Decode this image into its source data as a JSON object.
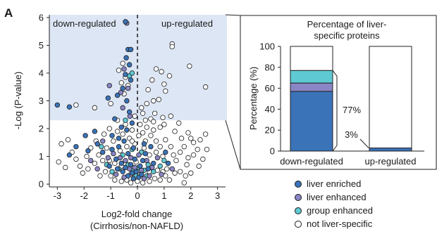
{
  "panel_label": "A",
  "colors": {
    "highlight_region": "#dde6f4",
    "liver_enriched": "#3a73b8",
    "liver_enhanced": "#8a85c4",
    "group_enhanced": "#5fc9d3",
    "not_liver_specific": "#ffffff"
  },
  "chart_data": [
    {
      "type": "scatter",
      "xlabel": "Log2-fold change",
      "xlabel2": "(Cirrhosis/non-NAFLD)",
      "ylabel": "-Log (P-value)",
      "xlim": [
        -3.3,
        3.3
      ],
      "ylim": [
        -0.1,
        6.1
      ],
      "xticks": [
        -3,
        -2,
        -1,
        0,
        1,
        2,
        3
      ],
      "yticks": [
        0,
        1,
        2,
        3,
        4,
        5,
        6
      ],
      "threshold_y": 2.3,
      "zero_line_x": 0,
      "annotations": {
        "left": "down-regulated",
        "right": "up-regulated"
      },
      "series": [
        {
          "name": "liver enriched",
          "color": "#3a73b8",
          "points": [
            [
              -3.0,
              2.85
            ],
            [
              -2.55,
              2.78
            ],
            [
              -0.45,
              5.85
            ],
            [
              -0.35,
              4.85
            ],
            [
              -0.25,
              4.85
            ],
            [
              -0.42,
              4.55
            ],
            [
              -0.3,
              4.3
            ],
            [
              -0.45,
              3.95
            ],
            [
              -0.25,
              3.75
            ],
            [
              -0.55,
              3.45
            ],
            [
              -0.75,
              3.2
            ],
            [
              -1.1,
              3.1
            ],
            [
              -0.85,
              2.35
            ],
            [
              -0.4,
              3.0
            ],
            [
              -0.3,
              2.6
            ],
            [
              -0.2,
              2.2
            ],
            [
              -0.6,
              2.05
            ],
            [
              -0.4,
              1.95
            ],
            [
              -1.6,
              1.9
            ],
            [
              -1.95,
              1.75
            ],
            [
              -1.5,
              1.45
            ],
            [
              -2.3,
              1.35
            ],
            [
              -1.85,
              1.2
            ],
            [
              -2.55,
              1.05
            ],
            [
              -1.3,
              1.15
            ],
            [
              -0.95,
              1.25
            ],
            [
              -0.7,
              1.35
            ],
            [
              -0.5,
              1.55
            ],
            [
              -0.35,
              1.1
            ],
            [
              -0.15,
              1.3
            ],
            [
              -0.8,
              0.9
            ],
            [
              -0.6,
              0.75
            ],
            [
              -0.45,
              0.6
            ],
            [
              -0.25,
              0.7
            ],
            [
              -0.1,
              0.9
            ],
            [
              -0.05,
              0.45
            ],
            [
              -0.2,
              0.4
            ],
            [
              -0.35,
              0.3
            ],
            [
              -0.55,
              0.45
            ],
            [
              -0.75,
              0.55
            ],
            [
              0.1,
              0.65
            ],
            [
              0.2,
              0.85
            ],
            [
              0.3,
              1.1
            ],
            [
              0.4,
              0.55
            ],
            [
              0.6,
              0.75
            ],
            [
              0.5,
              1.35
            ],
            [
              1.05,
              1.15
            ],
            [
              1.15,
              0.75
            ],
            [
              -1.05,
              0.65
            ],
            [
              -0.15,
              0.2
            ],
            [
              0.05,
              0.25
            ],
            [
              0.15,
              0.35
            ],
            [
              -0.95,
              1.75
            ],
            [
              -0.7,
              1.65
            ],
            [
              0.25,
              1.45
            ]
          ]
        },
        {
          "name": "liver enhanced",
          "color": "#8a85c4",
          "points": [
            [
              -0.4,
              5.8
            ],
            [
              -0.5,
              4.15
            ],
            [
              -0.62,
              3.3
            ],
            [
              -0.35,
              3.45
            ],
            [
              -1.05,
              3.55
            ],
            [
              -0.55,
              2.75
            ],
            [
              -0.28,
              2.45
            ],
            [
              -1.3,
              1.55
            ],
            [
              -1.1,
              0.95
            ],
            [
              -0.9,
              1.1
            ],
            [
              -0.65,
              0.95
            ],
            [
              -0.45,
              0.85
            ],
            [
              -0.3,
              0.55
            ],
            [
              -0.1,
              0.6
            ],
            [
              0.15,
              0.5
            ],
            [
              0.35,
              0.85
            ],
            [
              0.55,
              0.6
            ],
            [
              0.75,
              0.95
            ],
            [
              1.3,
              0.55
            ],
            [
              0.9,
              0.35
            ],
            [
              -0.8,
              0.35
            ],
            [
              -0.5,
              0.25
            ],
            [
              -0.25,
              0.95
            ],
            [
              0.05,
              1.05
            ],
            [
              0.25,
              0.2
            ],
            [
              -1.5,
              0.55
            ],
            [
              -1.75,
              0.85
            ],
            [
              0.45,
              0.3
            ]
          ]
        },
        {
          "name": "group enhanced",
          "color": "#5fc9d3",
          "points": [
            [
              -0.3,
              3.9
            ],
            [
              -0.2,
              4.0
            ],
            [
              -0.45,
              2.3
            ],
            [
              -1.35,
              1.35
            ],
            [
              -1.15,
              0.7
            ],
            [
              -0.7,
              0.55
            ],
            [
              -0.35,
              0.7
            ],
            [
              -0.15,
              0.5
            ],
            [
              0.05,
              0.6
            ],
            [
              0.25,
              0.5
            ],
            [
              0.4,
              0.7
            ],
            [
              0.6,
              0.45
            ],
            [
              0.85,
              0.65
            ],
            [
              1.0,
              0.85
            ],
            [
              -0.55,
              1.05
            ],
            [
              -0.2,
              1.25
            ],
            [
              0.15,
              1.15
            ],
            [
              -0.95,
              0.45
            ],
            [
              0.35,
              0.3
            ],
            [
              -0.05,
              0.3
            ]
          ]
        },
        {
          "name": "not liver-specific",
          "color": "#ffffff",
          "points": [
            [
              -2.3,
              2.85
            ],
            [
              -1.6,
              2.75
            ],
            [
              -1.0,
              2.9
            ],
            [
              -0.35,
              3.55
            ],
            [
              -0.5,
              3.25
            ],
            [
              0.35,
              2.9
            ],
            [
              0.2,
              2.55
            ],
            [
              0.5,
              2.35
            ],
            [
              0.35,
              2.05
            ],
            [
              0.6,
              2.25
            ],
            [
              0.85,
              2.05
            ],
            [
              1.0,
              2.15
            ],
            [
              1.25,
              2.45
            ],
            [
              1.4,
              1.9
            ],
            [
              1.65,
              1.65
            ],
            [
              1.9,
              1.85
            ],
            [
              2.1,
              1.5
            ],
            [
              2.35,
              1.6
            ],
            [
              2.55,
              1.8
            ],
            [
              2.6,
              1.25
            ],
            [
              2.45,
              0.9
            ],
            [
              2.1,
              1.05
            ],
            [
              1.85,
              0.7
            ],
            [
              1.6,
              1.15
            ],
            [
              1.45,
              0.85
            ],
            [
              1.25,
              1.35
            ],
            [
              1.05,
              1.6
            ],
            [
              0.85,
              1.35
            ],
            [
              0.7,
              1.55
            ],
            [
              0.5,
              1.75
            ],
            [
              0.3,
              1.55
            ],
            [
              0.2,
              1.85
            ],
            [
              0.1,
              2.15
            ],
            [
              0.4,
              3.4
            ],
            [
              0.8,
              3.05
            ],
            [
              1.05,
              3.35
            ],
            [
              1.2,
              3.9
            ],
            [
              0.9,
              4.05
            ],
            [
              0.7,
              4.15
            ],
            [
              0.55,
              3.75
            ],
            [
              1.3,
              5.05
            ],
            [
              1.3,
              4.95
            ],
            [
              1.95,
              4.25
            ],
            [
              2.55,
              3.5
            ],
            [
              1.0,
              3.6
            ],
            [
              0.6,
              3.0
            ],
            [
              -0.55,
              4.35
            ],
            [
              -0.7,
              4.1
            ],
            [
              -0.45,
              3.85
            ],
            [
              -0.6,
              3.65
            ],
            [
              -2.6,
              1.6
            ],
            [
              -2.85,
              1.45
            ],
            [
              -2.3,
              0.9
            ],
            [
              -2.15,
              0.65
            ],
            [
              -2.7,
              0.6
            ],
            [
              -2.95,
              0.8
            ],
            [
              -1.9,
              1.0
            ],
            [
              -1.75,
              1.3
            ],
            [
              -1.45,
              1.05
            ],
            [
              -1.6,
              0.75
            ],
            [
              -1.3,
              0.85
            ],
            [
              -1.2,
              0.45
            ],
            [
              -1.4,
              0.3
            ],
            [
              -1.0,
              0.3
            ],
            [
              -0.85,
              0.15
            ],
            [
              -0.6,
              0.1
            ],
            [
              -0.4,
              0.15
            ],
            [
              -0.25,
              0.05
            ],
            [
              0.0,
              0.1
            ],
            [
              0.2,
              0.05
            ],
            [
              0.45,
              0.1
            ],
            [
              0.65,
              0.2
            ],
            [
              0.85,
              0.15
            ],
            [
              1.05,
              0.3
            ],
            [
              1.2,
              0.15
            ],
            [
              1.4,
              0.4
            ],
            [
              1.6,
              0.45
            ],
            [
              1.8,
              0.3
            ],
            [
              2.0,
              0.4
            ],
            [
              1.75,
              0.05
            ],
            [
              1.1,
              0.55
            ],
            [
              0.95,
              1.0
            ],
            [
              0.7,
              1.15
            ],
            [
              0.45,
              1.05
            ],
            [
              0.25,
              1.3
            ],
            [
              -0.1,
              1.45
            ],
            [
              -0.3,
              1.65
            ],
            [
              -0.55,
              1.8
            ],
            [
              -0.75,
              1.9
            ],
            [
              -1.05,
              2.0
            ],
            [
              -1.25,
              1.8
            ],
            [
              -0.9,
              1.55
            ],
            [
              -1.15,
              1.3
            ],
            [
              -0.65,
              1.2
            ],
            [
              -0.4,
              1.35
            ],
            [
              -0.2,
              1.55
            ],
            [
              0.05,
              1.75
            ],
            [
              0.3,
              2.3
            ],
            [
              0.65,
              2.55
            ],
            [
              0.95,
              2.4
            ],
            [
              0.15,
              2.75
            ],
            [
              -0.1,
              2.45
            ],
            [
              -0.2,
              1.95
            ],
            [
              -0.45,
              2.15
            ],
            [
              -0.75,
              2.3
            ],
            [
              1.55,
              2.2
            ],
            [
              1.75,
              1.35
            ],
            [
              2.25,
              1.25
            ],
            [
              2.0,
              1.65
            ],
            [
              0.6,
              1.95
            ],
            [
              0.45,
              0.45
            ],
            [
              0.75,
              0.5
            ],
            [
              -0.6,
              0.65
            ],
            [
              -0.85,
              0.75
            ],
            [
              -1.05,
              0.85
            ],
            [
              -0.25,
              0.35
            ],
            [
              0.1,
              0.35
            ],
            [
              -2.45,
              1.15
            ],
            [
              -2.05,
              0.4
            ],
            [
              1.35,
              1.05
            ],
            [
              1.9,
              0.95
            ],
            [
              2.3,
              0.65
            ],
            [
              -1.85,
              0.55
            ],
            [
              -1.55,
              1.55
            ],
            [
              -0.05,
              0.8
            ],
            [
              0.95,
              0.45
            ]
          ]
        }
      ],
      "legend": [
        "liver enriched",
        "liver enhanced",
        "group enhanced",
        "not liver-specific"
      ]
    },
    {
      "type": "bar",
      "title_line1": "Percentage of liver-",
      "title_line2": "specific proteins",
      "ylabel": "Percentage (%)",
      "ylim": [
        0,
        100
      ],
      "yticks": [
        0,
        20,
        40,
        60,
        80,
        100
      ],
      "categories": [
        "down-regulated",
        "up-regulated"
      ],
      "stacked": true,
      "series": [
        {
          "name": "liver enriched",
          "color": "#3a73b8",
          "values": [
            57,
            3
          ]
        },
        {
          "name": "liver enhanced",
          "color": "#8a85c4",
          "values": [
            8,
            0
          ]
        },
        {
          "name": "group enhanced",
          "color": "#5fc9d3",
          "values": [
            12,
            0
          ]
        },
        {
          "name": "not liver-specific",
          "color": "#ffffff",
          "values": [
            23,
            97
          ]
        }
      ],
      "annotations": [
        "77%",
        "3%"
      ]
    }
  ]
}
